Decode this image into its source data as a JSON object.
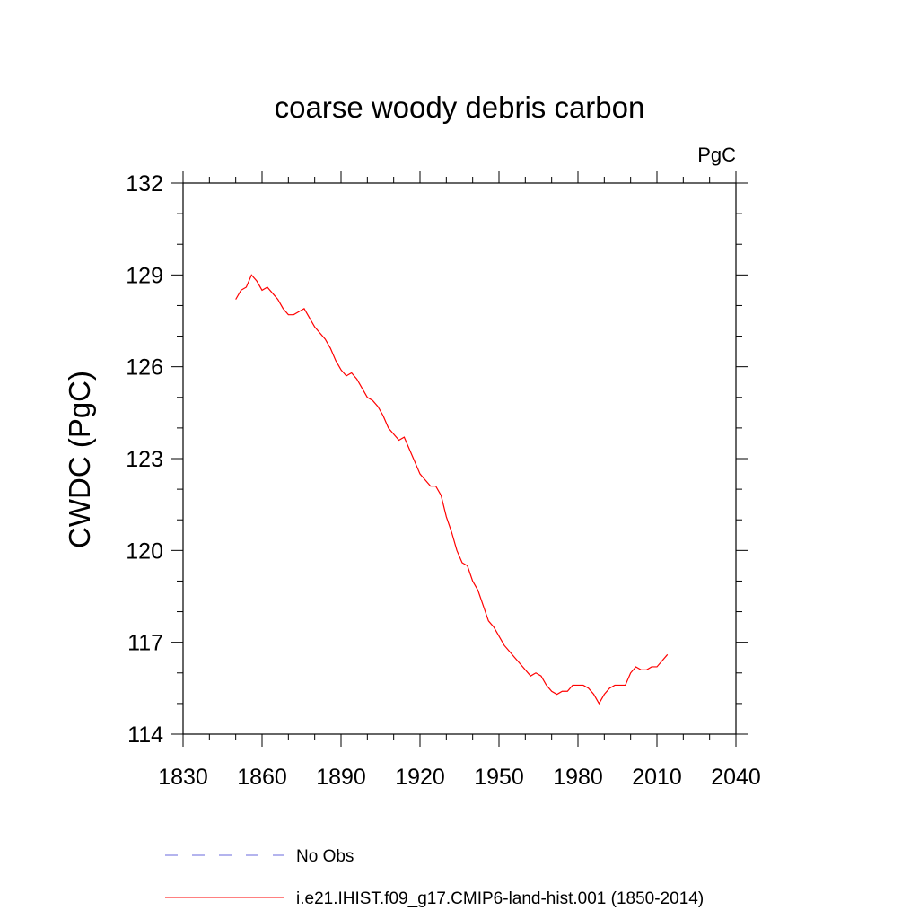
{
  "chart_data": {
    "type": "line",
    "title": "coarse woody debris carbon",
    "units": "PgC",
    "ylabel": "CWDC  (PgC)",
    "xlabel": "",
    "xlim": [
      1830,
      2040
    ],
    "ylim": [
      114,
      132
    ],
    "x_ticks": [
      1830,
      1860,
      1890,
      1920,
      1950,
      1980,
      2010,
      2040
    ],
    "y_ticks": [
      114,
      117,
      120,
      123,
      126,
      129,
      132
    ],
    "grid": false,
    "legend_placement": "bottom",
    "series": [
      {
        "name": "No Obs",
        "color": "#6a6adc",
        "dash": "dashed",
        "x": [],
        "y": []
      },
      {
        "name": "i.e21.IHIST.f09_g17.CMIP6-land-hist.001 (1850-2014)",
        "color": "#ff0000",
        "dash": "solid",
        "x": [
          1850,
          1852,
          1854,
          1856,
          1858,
          1860,
          1862,
          1864,
          1866,
          1868,
          1870,
          1872,
          1874,
          1876,
          1878,
          1880,
          1882,
          1884,
          1886,
          1888,
          1890,
          1892,
          1894,
          1896,
          1898,
          1900,
          1902,
          1904,
          1906,
          1908,
          1910,
          1912,
          1914,
          1916,
          1918,
          1920,
          1922,
          1924,
          1926,
          1928,
          1930,
          1932,
          1934,
          1936,
          1938,
          1940,
          1942,
          1944,
          1946,
          1948,
          1950,
          1952,
          1954,
          1956,
          1958,
          1960,
          1962,
          1964,
          1966,
          1968,
          1970,
          1972,
          1974,
          1976,
          1978,
          1980,
          1982,
          1984,
          1986,
          1988,
          1990,
          1992,
          1994,
          1996,
          1998,
          2000,
          2002,
          2004,
          2006,
          2008,
          2010,
          2012,
          2014
        ],
        "y": [
          128.2,
          128.5,
          128.6,
          129.0,
          128.8,
          128.5,
          128.6,
          128.4,
          128.2,
          127.9,
          127.7,
          127.7,
          127.8,
          127.9,
          127.6,
          127.3,
          127.1,
          126.9,
          126.6,
          126.2,
          125.9,
          125.7,
          125.8,
          125.6,
          125.3,
          125.0,
          124.9,
          124.7,
          124.4,
          124.0,
          123.8,
          123.6,
          123.7,
          123.3,
          122.9,
          122.5,
          122.3,
          122.1,
          122.1,
          121.8,
          121.1,
          120.6,
          120.0,
          119.6,
          119.5,
          119.0,
          118.7,
          118.2,
          117.7,
          117.5,
          117.2,
          116.9,
          116.7,
          116.5,
          116.3,
          116.1,
          115.9,
          116.0,
          115.9,
          115.6,
          115.4,
          115.3,
          115.4,
          115.4,
          115.6,
          115.6,
          115.6,
          115.5,
          115.3,
          115.0,
          115.3,
          115.5,
          115.6,
          115.6,
          115.6,
          116.0,
          116.2,
          116.1,
          116.1,
          116.2,
          116.2,
          116.4,
          116.6
        ]
      }
    ]
  }
}
